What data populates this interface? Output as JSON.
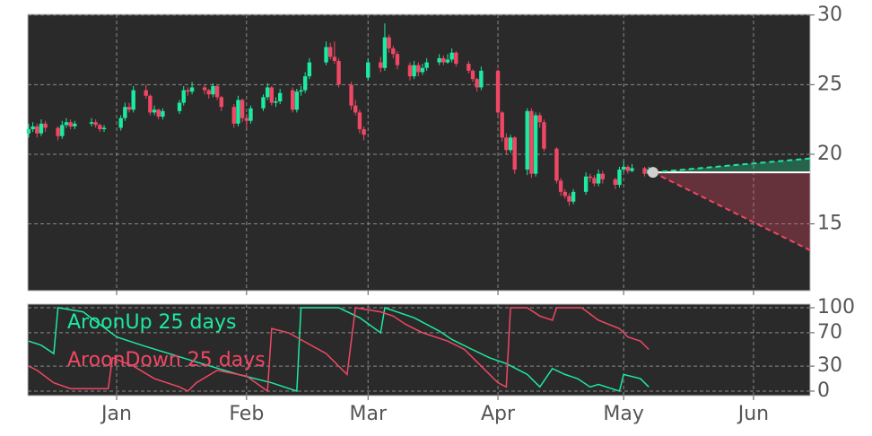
{
  "chart_data": [
    {
      "type": "candlestick",
      "x": [
        0,
        1,
        2,
        3,
        4,
        7,
        8,
        9,
        10,
        11,
        15,
        16,
        17,
        18,
        22,
        23,
        24,
        25,
        28,
        29,
        30,
        31,
        32,
        36,
        37,
        38,
        39,
        42,
        43,
        44,
        45,
        46,
        49,
        50,
        51,
        52,
        53,
        56,
        57,
        58,
        59,
        60,
        63,
        64,
        65,
        66,
        67,
        71,
        72,
        73,
        74,
        77,
        78,
        79,
        80,
        81,
        84,
        85,
        86,
        87,
        88,
        91,
        92,
        93,
        94,
        95,
        98,
        99,
        100,
        101,
        102,
        105,
        106,
        107,
        108,
        112,
        113,
        114,
        115,
        116,
        119,
        120,
        121,
        122,
        123,
        126,
        127,
        128,
        129,
        130,
        133,
        134,
        135,
        136,
        137,
        140,
        141,
        142,
        143,
        144,
        147,
        148,
        149
      ],
      "open": [
        21.5,
        21.8,
        22.0,
        21.5,
        22.2,
        21.9,
        21.3,
        22.1,
        22.3,
        22.0,
        22.2,
        22.3,
        22.1,
        21.8,
        21.9,
        22.6,
        23.4,
        23.2,
        24.6,
        24.2,
        23.0,
        23.2,
        22.7,
        23.1,
        23.7,
        24.6,
        24.5,
        24.8,
        24.6,
        24.3,
        24.9,
        24.1,
        23.4,
        22.2,
        23.9,
        22.6,
        22.4,
        23.3,
        24.1,
        24.8,
        23.7,
        23.8,
        24.6,
        23.2,
        24.5,
        24.6,
        25.6,
        26.6,
        27.7,
        27.0,
        26.7,
        25.0,
        23.5,
        23.0,
        21.8,
        25.5,
        26.6,
        26.2,
        28.4,
        27.6,
        27.2,
        26.4,
        25.6,
        26.4,
        25.9,
        26.2,
        26.6,
        26.9,
        26.6,
        26.8,
        27.3,
        26.5,
        26.0,
        25.4,
        24.8,
        26.0,
        23.0,
        21.2,
        20.3,
        21.2,
        18.9,
        23.1,
        18.6,
        22.8,
        22.3,
        20.4,
        18.1,
        17.3,
        17.0,
        16.6,
        17.3,
        18.4,
        18.3,
        17.9,
        18.6,
        18.2,
        17.8,
        18.9,
        19.1,
        18.8,
        19.0,
        18.6,
        18.9
      ],
      "high": [
        22.2,
        22.3,
        22.2,
        22.5,
        22.4,
        22.0,
        22.4,
        22.6,
        22.5,
        22.4,
        22.6,
        22.5,
        22.2,
        22.1,
        22.8,
        23.7,
        23.7,
        24.9,
        25.0,
        24.3,
        23.5,
        23.3,
        23.3,
        23.9,
        24.9,
        24.8,
        25.2,
        25.0,
        24.7,
        25.1,
        25.0,
        24.2,
        23.6,
        24.2,
        24.0,
        22.9,
        23.5,
        24.3,
        25.1,
        24.9,
        24.1,
        24.7,
        24.8,
        24.7,
        24.9,
        25.9,
        26.9,
        28.1,
        28.0,
        28.1,
        26.9,
        25.2,
        23.9,
        23.2,
        22.0,
        26.9,
        27.0,
        29.4,
        28.6,
        27.8,
        27.4,
        26.6,
        26.7,
        26.6,
        26.5,
        26.9,
        27.2,
        27.1,
        27.2,
        27.6,
        27.4,
        26.7,
        26.1,
        25.5,
        26.3,
        26.1,
        23.1,
        21.5,
        21.4,
        21.3,
        23.3,
        23.3,
        23.0,
        23.0,
        22.5,
        20.5,
        18.3,
        17.5,
        17.2,
        17.5,
        18.7,
        18.6,
        18.5,
        18.9,
        18.8,
        18.3,
        19.1,
        19.5,
        19.2,
        19.3,
        19.1,
        19.1,
        19.0
      ],
      "low": [
        21.2,
        21.6,
        21.2,
        21.3,
        21.6,
        21.0,
        21.1,
        21.9,
        21.8,
        21.8,
        22.0,
        21.9,
        21.6,
        21.6,
        21.7,
        22.4,
        23.0,
        23.0,
        24.0,
        22.8,
        22.8,
        22.5,
        22.5,
        22.9,
        23.5,
        24.2,
        24.3,
        24.3,
        24.0,
        24.1,
        23.9,
        23.1,
        21.9,
        22.0,
        22.3,
        21.8,
        22.2,
        23.1,
        23.9,
        23.5,
        23.4,
        23.6,
        23.0,
        23.0,
        24.2,
        24.4,
        25.4,
        26.4,
        26.8,
        26.5,
        24.8,
        23.2,
        22.8,
        21.5,
        21.0,
        25.3,
        25.9,
        26.0,
        27.3,
        26.9,
        26.1,
        25.3,
        25.4,
        25.6,
        25.7,
        26.0,
        26.4,
        26.4,
        26.5,
        26.6,
        26.3,
        25.8,
        25.2,
        24.5,
        24.6,
        22.8,
        20.9,
        20.0,
        20.1,
        18.6,
        18.5,
        18.3,
        18.4,
        21.9,
        20.2,
        17.9,
        17.0,
        16.8,
        16.3,
        16.4,
        17.1,
        18.0,
        17.7,
        17.7,
        17.9,
        17.5,
        17.6,
        18.7,
        18.6,
        18.7,
        18.4,
        18.5,
        18.5
      ],
      "close": [
        21.8,
        22.0,
        21.5,
        22.2,
        21.9,
        21.3,
        22.1,
        22.3,
        22.0,
        22.2,
        22.3,
        22.1,
        21.8,
        21.9,
        22.6,
        23.4,
        23.2,
        24.6,
        24.2,
        23.0,
        23.2,
        22.7,
        23.1,
        23.7,
        24.6,
        24.5,
        24.8,
        24.6,
        24.3,
        24.9,
        24.1,
        23.4,
        22.2,
        23.9,
        22.6,
        22.4,
        23.3,
        24.1,
        24.8,
        23.7,
        23.8,
        24.4,
        23.2,
        24.5,
        24.6,
        25.6,
        26.6,
        27.7,
        27.0,
        26.7,
        25.0,
        23.5,
        23.0,
        21.8,
        21.4,
        26.6,
        26.2,
        28.4,
        27.6,
        27.2,
        26.4,
        25.6,
        26.4,
        25.9,
        26.2,
        26.6,
        26.9,
        26.6,
        26.8,
        27.3,
        26.5,
        26.0,
        25.4,
        24.8,
        26.0,
        23.0,
        21.2,
        20.3,
        21.2,
        18.9,
        23.1,
        18.6,
        22.8,
        22.3,
        20.4,
        18.1,
        17.3,
        17.0,
        16.6,
        17.3,
        18.4,
        18.3,
        17.9,
        18.6,
        18.2,
        17.8,
        18.9,
        19.1,
        18.8,
        19.0,
        18.6,
        18.9,
        18.7
      ],
      "up_color": "#1de9a0",
      "down_color": "#f04764",
      "forecast": {
        "x": [
          149,
          186.5
        ],
        "mid": [
          18.7,
          18.7
        ],
        "upper": [
          18.7,
          19.7
        ],
        "lower": [
          18.7,
          13.1
        ],
        "upper_color": "#1de9a0",
        "lower_color": "#f04764",
        "mid_color": "#ffffff",
        "marker_color": "#d0d0d0"
      },
      "xlim": [
        -0.2,
        186.5
      ],
      "xticks": [
        21,
        52,
        81,
        112,
        142,
        173
      ],
      "ylim": [
        10.2,
        30.05
      ],
      "yticks": [
        15,
        20,
        25,
        30
      ],
      "grid": true
    },
    {
      "type": "line",
      "series": [
        {
          "name": "AroonUp 25 days",
          "color": "#1de9a0",
          "x": [
            0,
            3,
            6,
            7,
            13,
            21,
            27,
            40,
            50,
            58,
            64,
            65,
            74,
            79,
            84,
            85,
            92,
            98,
            101,
            105,
            110,
            114,
            119,
            122,
            125,
            128,
            131,
            134,
            136,
            141,
            142,
            146,
            148
          ],
          "values": [
            60,
            55,
            45,
            100,
            95,
            65,
            55,
            35,
            20,
            10,
            0,
            100,
            100,
            88,
            70,
            100,
            88,
            72,
            62,
            52,
            40,
            33,
            20,
            5,
            27,
            20,
            15,
            5,
            8,
            0,
            20,
            15,
            5
          ]
        },
        {
          "name": "AroonDown 25 days",
          "color": "#f04764",
          "x": [
            0,
            2,
            6,
            10,
            19,
            20,
            25,
            30,
            36,
            38,
            40,
            45,
            52,
            57,
            58,
            62,
            71,
            76,
            78,
            84,
            87,
            90,
            94,
            100,
            104,
            108,
            112,
            114,
            115,
            119,
            122,
            125,
            126,
            132,
            136,
            141,
            143,
            146,
            148
          ],
          "values": [
            30,
            25,
            10,
            3,
            3,
            40,
            30,
            15,
            5,
            0,
            10,
            25,
            18,
            0,
            75,
            70,
            45,
            20,
            100,
            95,
            90,
            80,
            70,
            60,
            50,
            30,
            10,
            5,
            100,
            100,
            90,
            85,
            100,
            100,
            85,
            75,
            65,
            60,
            50
          ]
        }
      ],
      "legend": "upper left",
      "xlim": [
        -0.2,
        186.5
      ],
      "xticks": [
        {
          "value": 21,
          "label": "Jan"
        },
        {
          "value": 52,
          "label": "Feb"
        },
        {
          "value": 81,
          "label": "Mar"
        },
        {
          "value": 112,
          "label": "Apr"
        },
        {
          "value": 142,
          "label": "May"
        },
        {
          "value": 173,
          "label": "Jun"
        }
      ],
      "ylim": [
        -5.4,
        104.3
      ],
      "yticks": [
        0,
        30,
        70,
        100
      ],
      "grid": true
    }
  ]
}
